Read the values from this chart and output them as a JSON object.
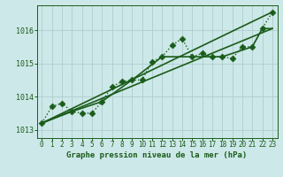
{
  "title": "Graphe pression niveau de la mer (hPa)",
  "background_color": "#cde8e8",
  "plot_bg_color": "#cde8e8",
  "grid_color": "#b0cccc",
  "line_color": "#1a5c1a",
  "xlim": [
    -0.5,
    23.5
  ],
  "ylim": [
    1012.75,
    1016.75
  ],
  "yticks": [
    1013,
    1014,
    1015,
    1016
  ],
  "xticks": [
    0,
    1,
    2,
    3,
    4,
    5,
    6,
    7,
    8,
    9,
    10,
    11,
    12,
    13,
    14,
    15,
    16,
    17,
    18,
    19,
    20,
    21,
    22,
    23
  ],
  "series": [
    {
      "x": [
        0,
        1,
        2,
        3,
        4,
        5,
        6,
        7,
        8,
        9,
        10,
        11,
        12,
        13,
        14,
        15,
        16,
        17,
        18,
        19,
        20,
        21,
        22,
        23
      ],
      "y": [
        1013.2,
        1013.7,
        1013.8,
        1013.55,
        1013.5,
        1013.5,
        1013.85,
        1014.3,
        1014.45,
        1014.5,
        1014.5,
        1015.05,
        1015.2,
        1015.55,
        1015.75,
        1015.2,
        1015.3,
        1015.2,
        1015.2,
        1015.15,
        1015.5,
        1015.5,
        1016.05,
        1016.55
      ],
      "style": "dotted_markers",
      "linewidth": 1.0,
      "markersize": 3.5,
      "linestyle": ":"
    },
    {
      "x": [
        0,
        23
      ],
      "y": [
        1013.2,
        1016.05
      ],
      "style": "line",
      "linewidth": 1.2,
      "linestyle": "-"
    },
    {
      "x": [
        0,
        23
      ],
      "y": [
        1013.2,
        1016.55
      ],
      "style": "line",
      "linewidth": 1.2,
      "linestyle": "-"
    },
    {
      "x": [
        0,
        3,
        6,
        9,
        12,
        15,
        18,
        21,
        22,
        23
      ],
      "y": [
        1013.2,
        1013.55,
        1013.85,
        1014.5,
        1015.2,
        1015.2,
        1015.2,
        1015.5,
        1016.05,
        1016.05
      ],
      "style": "line",
      "linewidth": 1.2,
      "linestyle": "-"
    }
  ],
  "ylabel_fontsize": 6,
  "xlabel_fontsize": 6.5,
  "tick_fontsize": 5.5
}
